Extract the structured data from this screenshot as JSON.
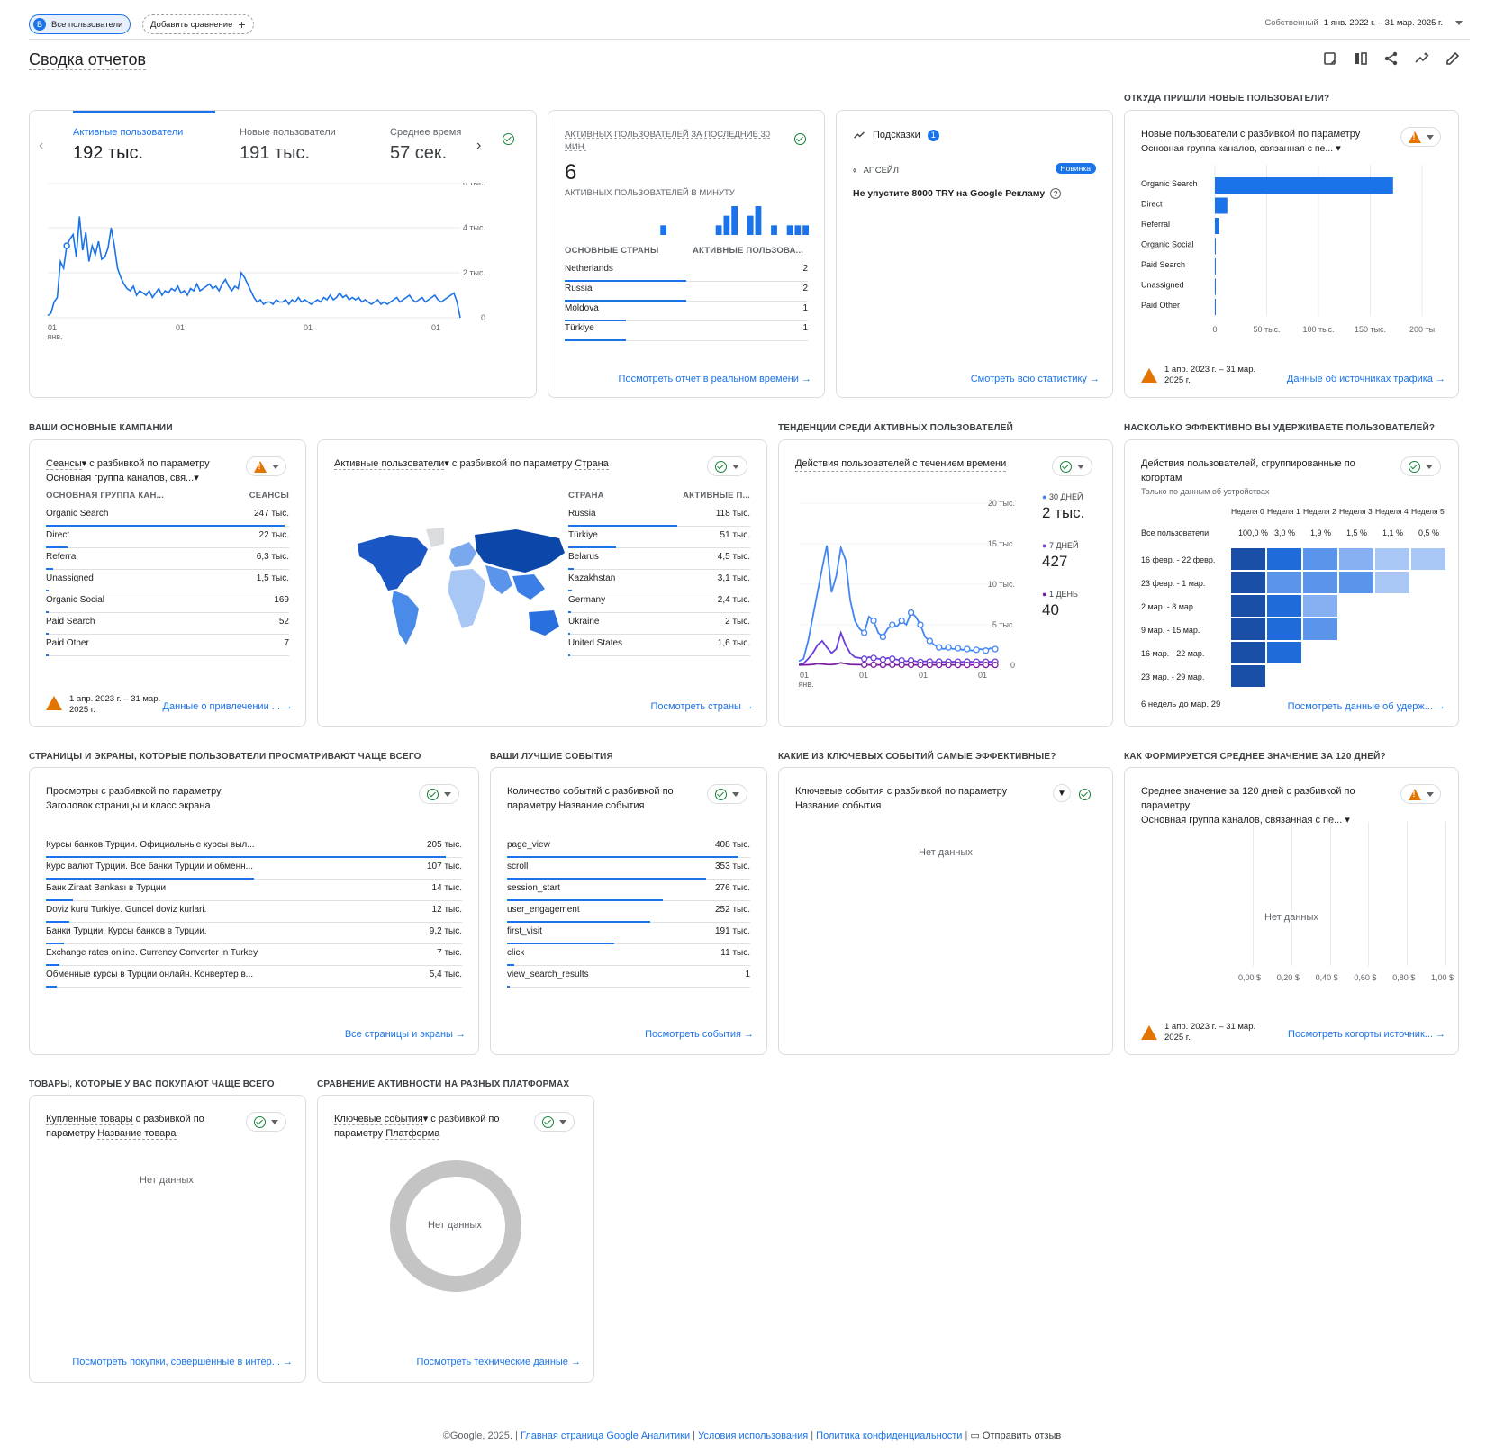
{
  "topbar": {
    "segment_badge": "B",
    "segment": "Все пользователи",
    "add_compare": "Добавить сравнение",
    "date_label": "Собственный",
    "date_range": "1 янв. 2022 г. – 31 мар. 2025 г."
  },
  "page": {
    "title": "Сводка отчетов"
  },
  "card1": {
    "metrics": [
      {
        "label": "Активные пользователи",
        "value": "192 тыс."
      },
      {
        "label": "Новые пользователи",
        "value": "191 тыс."
      },
      {
        "label": "Среднее время",
        "value": "57 сек."
      }
    ],
    "yticks": [
      "6 тыс.",
      "4 тыс.",
      "2 тыс.",
      "0"
    ],
    "xticks": [
      "01",
      "01",
      "01",
      "01"
    ],
    "xsub": "янв.",
    "chart_data": {
      "type": "line",
      "title": "",
      "ylim": [
        0,
        6000
      ],
      "series": [
        {
          "values": [
            100,
            200,
            700,
            900,
            2500,
            2200,
            3200,
            3500,
            3700,
            2700,
            4500,
            3000,
            3800,
            2500,
            3200,
            2800,
            3400,
            2600,
            2700,
            3100,
            4000,
            3200,
            2200,
            1800,
            1500,
            1300,
            1200,
            1400,
            1000,
            1200,
            1100,
            1000,
            1200,
            900,
            1100,
            1300,
            1000,
            1200,
            1100,
            1300,
            1200,
            1400,
            1100,
            1200,
            1000,
            1300,
            1200,
            1500,
            1200,
            1300,
            1400,
            1500,
            1300,
            1400,
            1200,
            1500,
            1700,
            1400,
            1200,
            1400,
            1300,
            2000,
            1800,
            1500,
            1200,
            900,
            700,
            800,
            600,
            700,
            700,
            600,
            800,
            700,
            700,
            800,
            600,
            800,
            700,
            900,
            700,
            800,
            700,
            600,
            700,
            800,
            700,
            900,
            800,
            1000,
            800,
            900,
            1100,
            900,
            1000,
            800,
            900,
            800,
            900,
            700,
            800,
            700,
            600,
            700,
            800,
            600,
            700,
            600,
            700,
            800,
            900,
            700,
            800,
            900,
            1000,
            800,
            700,
            800,
            900,
            700,
            800,
            900,
            1000,
            800,
            700,
            800,
            900,
            1000,
            1100,
            700,
            0
          ]
        }
      ]
    }
  },
  "realtime": {
    "title": "АКТИВНЫХ ПОЛЬЗОВАТЕЛЕЙ ЗА ПОСЛЕДНИЕ 30 МИН.",
    "value": "6",
    "per_minute": "АКТИВНЫХ ПОЛЬЗОВАТЕЛЕЙ В МИНУТУ",
    "col1": "ОСНОВНЫЕ СТРАНЫ",
    "col2": "АКТИВНЫЕ ПОЛЬЗОВА...",
    "rows": [
      {
        "k": "Netherlands",
        "v": "2",
        "f": 0.5
      },
      {
        "k": "Russia",
        "v": "2",
        "f": 0.5
      },
      {
        "k": "Moldova",
        "v": "1",
        "f": 0.25
      },
      {
        "k": "Türkiye",
        "v": "1",
        "f": 0.25
      }
    ],
    "link": "Посмотреть отчет в реальном времени",
    "chart_data": {
      "type": "bar",
      "values": [
        0,
        0,
        0,
        0,
        0,
        0,
        0,
        0,
        0,
        0,
        0,
        0,
        1,
        0,
        0,
        0,
        0,
        0,
        0,
        1,
        2,
        3,
        0,
        2,
        3,
        0,
        1,
        0,
        1,
        1,
        1
      ]
    }
  },
  "insights": {
    "title": "Подсказки",
    "count": "1",
    "tag": "АПСЕЙЛ",
    "badge": "Новинка",
    "text": "Не упустите 8000 TRY на Google Рекламу",
    "link": "Смотреть всю статистику"
  },
  "sec_where": "ОТКУДА ПРИШЛИ НОВЫЕ ПОЛЬЗОВАТЕЛИ?",
  "newusers": {
    "title": "Новые пользователи с разбивкой по параметру",
    "subtitle": "Основная группа каналов, связанная с пе...",
    "xticks": [
      "0",
      "50 тыс.",
      "100 тыс.",
      "150 тыс.",
      "200 ты"
    ],
    "date": "1 апр. 2023 г. – 31 мар. 2025 г.",
    "link": "Данные об источниках трафика",
    "chart_data": {
      "type": "bar",
      "categories": [
        "Organic Search",
        "Direct",
        "Referral",
        "Organic Social",
        "Paid Search",
        "Unassigned",
        "Paid Other"
      ],
      "values": [
        172000,
        12000,
        4000,
        800,
        400,
        300,
        100
      ],
      "xlim": [
        0,
        200000
      ]
    }
  },
  "sec_campaigns": "ВАШИ ОСНОВНЫЕ КАМПАНИИ",
  "sessions": {
    "title1": "Сеансы",
    "title2": " с разбивкой по параметру",
    "subtitle": "Основная группа каналов, свя...",
    "col1": "ОСНОВНАЯ ГРУППА КАН...",
    "col2": "СЕАНСЫ",
    "rows": [
      {
        "k": "Organic Search",
        "v": "247 тыс.",
        "f": 0.98
      },
      {
        "k": "Direct",
        "v": "22 тыс.",
        "f": 0.09
      },
      {
        "k": "Referral",
        "v": "6,3 тыс.",
        "f": 0.03
      },
      {
        "k": "Unassigned",
        "v": "1,5 тыс.",
        "f": 0.01
      },
      {
        "k": "Organic Social",
        "v": "169",
        "f": 0.003
      },
      {
        "k": "Paid Search",
        "v": "52",
        "f": 0.002
      },
      {
        "k": "Paid Other",
        "v": "7",
        "f": 0.001
      }
    ],
    "date": "1 апр. 2023 г. – 31 мар. 2025 г.",
    "link": "Данные о привлечении ..."
  },
  "countries": {
    "title1": "Активные пользователи",
    "title2": " с разбивкой по параметру ",
    "title3": "Страна",
    "col1": "СТРАНА",
    "col2": "АКТИВНЫЕ П...",
    "rows": [
      {
        "k": "Russia",
        "v": "118 тыс.",
        "f": 0.6
      },
      {
        "k": "Türkiye",
        "v": "51 тыс.",
        "f": 0.26
      },
      {
        "k": "Belarus",
        "v": "4,5 тыс.",
        "f": 0.03
      },
      {
        "k": "Kazakhstan",
        "v": "3,1 тыс.",
        "f": 0.02
      },
      {
        "k": "Germany",
        "v": "2,4 тыс.",
        "f": 0.015
      },
      {
        "k": "Ukraine",
        "v": "2 тыс.",
        "f": 0.012
      },
      {
        "k": "United States",
        "v": "1,6 тыс.",
        "f": 0.01
      }
    ],
    "link": "Посмотреть страны"
  },
  "sec_trends": "ТЕНДЕНЦИИ СРЕДИ АКТИВНЫХ ПОЛЬЗОВАТЕЛЕЙ",
  "trends": {
    "title": "Действия пользователей с течением времени",
    "yticks": [
      "20 тыс.",
      "15 тыс.",
      "10 тыс.",
      "5 тыс.",
      "0"
    ],
    "xticks": [
      "01",
      "01",
      "01",
      "01"
    ],
    "xsub": "янв.",
    "legend": [
      {
        "label": "30 ДНЕЙ",
        "value": "2 тыс.",
        "color": "#4285f4"
      },
      {
        "label": "7 ДНЕЙ",
        "value": "427",
        "color": "#6a3fd9"
      },
      {
        "label": "1 ДЕНЬ",
        "value": "40",
        "color": "#7b1fa2"
      }
    ],
    "chart_data": {
      "type": "line",
      "ylim": [
        0,
        20000
      ],
      "series": [
        {
          "values": [
            500,
            800,
            3000,
            6000,
            9000,
            12000,
            14800,
            9000,
            11000,
            14500,
            13000,
            8000,
            5500,
            4500,
            4000,
            6000,
            5500,
            4000,
            3500,
            4500,
            5000,
            4800,
            5500,
            5000,
            6500,
            6000,
            5000,
            3500,
            3000,
            2500,
            2200,
            2000,
            2200,
            2000,
            2100,
            1900,
            2000,
            1800,
            1900,
            2000,
            1800,
            2100,
            2000
          ]
        },
        {
          "values": [
            100,
            200,
            800,
            1500,
            2500,
            3000,
            2200,
            1500,
            2000,
            4000,
            2500,
            1500,
            1000,
            900,
            800,
            1000,
            900,
            800,
            700,
            900,
            800,
            700,
            600,
            500,
            600,
            500,
            400,
            500,
            450,
            400,
            450,
            420,
            430,
            440,
            430,
            420,
            440,
            430,
            427,
            430,
            420,
            440,
            427
          ]
        },
        {
          "values": [
            30,
            40,
            60,
            100,
            200,
            150,
            100,
            80,
            150,
            300,
            200,
            100,
            80,
            70,
            60,
            50,
            60,
            50,
            40,
            50,
            60,
            40,
            50,
            40,
            50,
            40,
            45,
            40,
            42,
            41,
            40,
            42,
            40,
            41,
            40,
            42,
            40,
            41,
            40,
            42,
            40,
            41,
            40
          ]
        }
      ]
    }
  },
  "sec_retention": "НАСКОЛЬКО ЭФФЕКТИВНО ВЫ УДЕРЖИВАЕТЕ ПОЛЬЗОВАТЕЛЕЙ?",
  "cohort": {
    "title": "Действия пользователей, сгруппированные по когортам",
    "subtitle": "Только по данным об устройствах",
    "weeks": [
      "Неделя 0",
      "Неделя 1",
      "Неделя 2",
      "Неделя 3",
      "Неделя 4",
      "Неделя 5"
    ],
    "all_label": "Все пользователи",
    "all_values": [
      "100,0 %",
      "3,0 %",
      "1,9 %",
      "1,5 %",
      "1,1 %",
      "0,5 %"
    ],
    "rows": [
      "16 февр. - 22 февр.",
      "23 февр. - 1 мар.",
      "2 мар. - 8 мар.",
      "9 мар. - 15 мар.",
      "16 мар. - 22 мар.",
      "23 мар. - 29 мар."
    ],
    "footer": "6 недель до мар. 29",
    "link": "Посмотреть данные об удерж...",
    "chart_data": {
      "type": "heatmap",
      "values": [
        [
          100,
          3.0,
          2.0,
          1.2,
          1.0,
          0.5
        ],
        [
          100,
          2.0,
          1.8,
          2.0,
          1.1
        ],
        [
          100,
          3.5,
          1.5
        ],
        [
          100,
          4.0,
          2.5
        ],
        [
          100,
          3.0
        ],
        [
          100
        ]
      ]
    }
  },
  "sec_pages": "СТРАНИЦЫ И ЭКРАНЫ, КОТОРЫЕ ПОЛЬЗОВАТЕЛИ ПРОСМАТРИВАЮТ ЧАЩЕ ВСЕГО",
  "pages": {
    "title": "Просмотры с разбивкой по параметру Заголовок страницы и класс экрана",
    "rows": [
      {
        "k": "Курсы банков Турции. Официальные курсы выл...",
        "v": "205 тыс.",
        "f": 0.96
      },
      {
        "k": "Курс валют Турции. Все банки Турции и обменн...",
        "v": "107 тыс.",
        "f": 0.5
      },
      {
        "k": "Банк Ziraat Bankası в Турции",
        "v": "14 тыс.",
        "f": 0.065
      },
      {
        "k": "Doviz kuru Turkiye. Guncel doviz kurlari.",
        "v": "12 тыс.",
        "f": 0.056
      },
      {
        "k": "Банки Турции. Курсы банков в Турции.",
        "v": "9,2 тыс.",
        "f": 0.043
      },
      {
        "k": "Exchange rates online. Currency Converter in Turkey",
        "v": "7 тыс.",
        "f": 0.033
      },
      {
        "k": "Обменные курсы в Турции онлайн. Конвертер в...",
        "v": "5,4 тыс.",
        "f": 0.025
      }
    ],
    "link": "Все страницы и экраны"
  },
  "sec_events": "ВАШИ ЛУЧШИЕ СОБЫТИЯ",
  "events": {
    "title": "Количество событий с разбивкой по параметру Название события",
    "rows": [
      {
        "k": "page_view",
        "v": "408 тыс.",
        "f": 0.95
      },
      {
        "k": "scroll",
        "v": "353 тыс.",
        "f": 0.82
      },
      {
        "k": "session_start",
        "v": "276 тыс.",
        "f": 0.64
      },
      {
        "k": "user_engagement",
        "v": "252 тыс.",
        "f": 0.59
      },
      {
        "k": "first_visit",
        "v": "191 тыс.",
        "f": 0.44
      },
      {
        "k": "click",
        "v": "11 тыс.",
        "f": 0.03
      },
      {
        "k": "view_search_results",
        "v": "1",
        "f": 0
      }
    ],
    "link": "Посмотреть события"
  },
  "sec_key": "КАКИЕ ИЗ КЛЮЧЕВЫХ СОБЫТИЙ САМЫЕ ЭФФЕКТИВНЫЕ?",
  "keyev": {
    "title": "Ключевые события с разбивкой по параметру Название события",
    "nodata": "Нет данных"
  },
  "sec_ltv": "КАК ФОРМИРУЕТСЯ СРЕДНЕЕ ЗНАЧЕНИЕ ЗА 120 ДНЕЙ?",
  "ltv": {
    "title": "Среднее значение за 120 дней с разбивкой по параметру",
    "subtitle": "Основная группа каналов, связанная с пе...",
    "nodata": "Нет данных",
    "xticks": [
      "0,00 $",
      "0,20 $",
      "0,40 $",
      "0,60 $",
      "0,80 $",
      "1,00 $"
    ],
    "date": "1 апр. 2023 г. – 31 мар. 2025 г.",
    "link": "Посмотреть когорты источник..."
  },
  "sec_products": "ТОВАРЫ, КОТОРЫЕ У ВАС ПОКУПАЮТ ЧАЩЕ ВСЕГО",
  "products": {
    "title1": "Купленные товары",
    "title2": " с разбивкой по параметру ",
    "title3": "Название товара",
    "nodata": "Нет данных",
    "link": "Посмотреть покупки, совершенные в интер..."
  },
  "sec_platforms": "СРАВНЕНИЕ АКТИВНОСТИ НА РАЗНЫХ ПЛАТФОРМАХ",
  "platforms": {
    "title1": "Ключевые события",
    "title2": " с разбивкой по параметру ",
    "title3": "Платформа",
    "nodata": "Нет данных",
    "link": "Посмотреть технические данные"
  },
  "footer": {
    "copy": "©Google, 2025. | ",
    "home": "Главная страница Google Аналитики",
    "sep": " | ",
    "terms": "Условия использования",
    "privacy": "Политика конфиденциальности",
    "feedback": "Отправить отзыв"
  },
  "colors": {
    "accent": "#1a73e8",
    "dark": "#1a4fa8"
  }
}
